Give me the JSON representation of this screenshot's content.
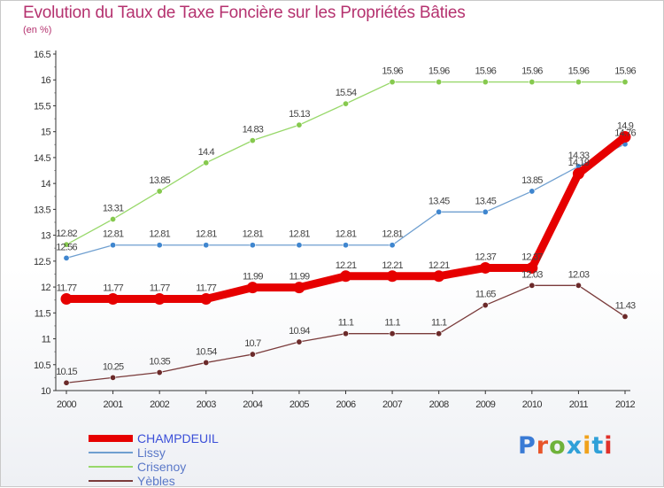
{
  "header": {
    "title": "Evolution du Taux de Taxe Foncière sur les Propriétés Bâties",
    "subtitle": "(en %)"
  },
  "logo": {
    "text": "Proxiti",
    "letter_colors": [
      "#3a7bd5",
      "#e8552a",
      "#6fb23a",
      "#2fa0d8",
      "#f0a21c",
      "#2fa0d8",
      "#e0312a"
    ]
  },
  "chart_data": {
    "type": "line",
    "title": "Evolution du Taux de Taxe Foncière sur les Propriétés Bâties",
    "ylabel": "(en %)",
    "xlabel": "",
    "x": [
      "2000",
      "2001",
      "2002",
      "2003",
      "2004",
      "2005",
      "2006",
      "2007",
      "2008",
      "2009",
      "2010",
      "2011",
      "2012"
    ],
    "ylim": [
      10,
      16.5
    ],
    "yticks": [
      10,
      10.5,
      11,
      11.5,
      12,
      12.5,
      13,
      13.5,
      14,
      14.5,
      15,
      15.5,
      16,
      16.5
    ],
    "ytick_labels": [
      "10",
      "10.5",
      "11",
      "11.5",
      "12",
      "12.5",
      "13",
      "13.5",
      "14",
      "14.5",
      "15",
      "15.5",
      "16",
      "16.5"
    ],
    "grid": false,
    "legend_position": "bottom-left",
    "series": [
      {
        "name": "CHAMPDEUIL",
        "color": "#e60000",
        "emphasis": true,
        "values": [
          11.77,
          11.77,
          11.77,
          11.77,
          11.99,
          11.99,
          12.21,
          12.21,
          12.21,
          12.37,
          12.37,
          14.19,
          14.9
        ],
        "labels": [
          "11.77",
          "11.77",
          "11.77",
          "11.77",
          "11.99",
          "11.99",
          "12.21",
          "12.21",
          "12.21",
          "12.37",
          "12.37",
          "14.19",
          "14.9"
        ]
      },
      {
        "name": "Lissy",
        "color": "#6f9fd0",
        "point_color": "#3f86cf",
        "values": [
          12.56,
          12.81,
          12.81,
          12.81,
          12.81,
          12.81,
          12.81,
          12.81,
          13.45,
          13.45,
          13.85,
          14.33,
          14.76
        ],
        "labels": [
          "12.56",
          "12.81",
          "12.81",
          "12.81",
          "12.81",
          "12.81",
          "12.81",
          "12.81",
          "13.45",
          "13.45",
          "13.85",
          "14.33",
          "14.76"
        ]
      },
      {
        "name": "Crisenoy",
        "color": "#98d86a",
        "point_color": "#86c94e",
        "values": [
          12.82,
          13.31,
          13.85,
          14.4,
          14.83,
          15.13,
          15.54,
          15.96,
          15.96,
          15.96,
          15.96,
          15.96,
          15.96
        ],
        "labels": [
          "12.82",
          "13.31",
          "13.85",
          "14.4",
          "14.83",
          "15.13",
          "15.54",
          "15.96",
          "15.96",
          "15.96",
          "15.96",
          "15.96",
          "15.96"
        ]
      },
      {
        "name": "Yèbles",
        "color": "#7a3b3b",
        "point_color": "#6b2a2a",
        "values": [
          10.15,
          10.25,
          10.35,
          10.54,
          10.7,
          10.94,
          11.1,
          11.1,
          11.1,
          11.65,
          12.03,
          12.03,
          11.43
        ],
        "labels": [
          "10.15",
          "10.25",
          "10.35",
          "10.54",
          "10.7",
          "10.94",
          "11.1",
          "11.1",
          "11.1",
          "11.65",
          "12.03",
          "12.03",
          "11.43"
        ]
      }
    ]
  }
}
